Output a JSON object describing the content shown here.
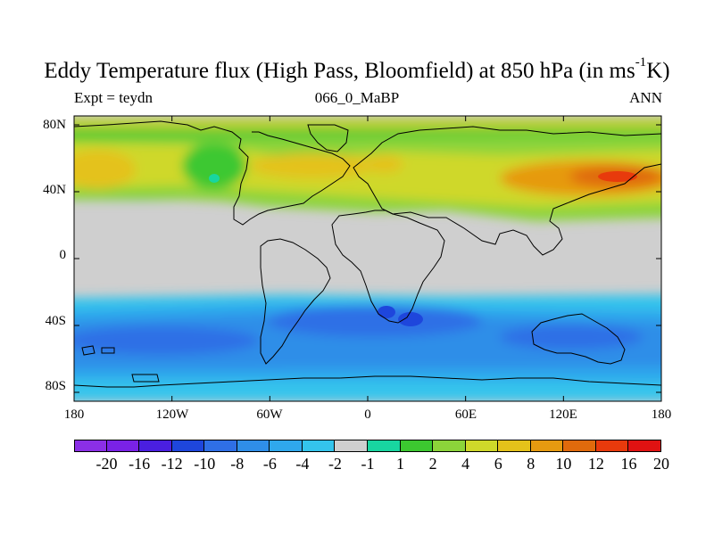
{
  "title_main": "Eddy Temperature flux (High Pass, Bloomfield) at 850 hPa (in ms",
  "title_sup": "-1",
  "title_end": "K)",
  "subtitle_left": "Expt = teydn",
  "subtitle_center": "066_0_MaBP",
  "subtitle_right": "ANN",
  "y_ticks": [
    "80N",
    "40N",
    "0",
    "40S",
    "80S"
  ],
  "x_ticks": [
    "180",
    "120W",
    "60W",
    "0",
    "60E",
    "120E",
    "180"
  ],
  "colorbar": {
    "colors": [
      "#8b2fe6",
      "#7a22e6",
      "#4a1fe0",
      "#1e46dc",
      "#2f6fe6",
      "#2f8ee8",
      "#2fa8ec",
      "#34c4ec",
      "#cfcfcf",
      "#18d6a0",
      "#3cc830",
      "#8cd43a",
      "#cfd82a",
      "#e4c21a",
      "#e69a10",
      "#e06a0c",
      "#e83a0c",
      "#e01212"
    ],
    "labels": [
      "-20",
      "-16",
      "-12",
      "-10",
      "-8",
      "-6",
      "-4",
      "-2",
      "-1",
      "1",
      "2",
      "4",
      "6",
      "8",
      "10",
      "12",
      "16",
      "20"
    ]
  }
}
